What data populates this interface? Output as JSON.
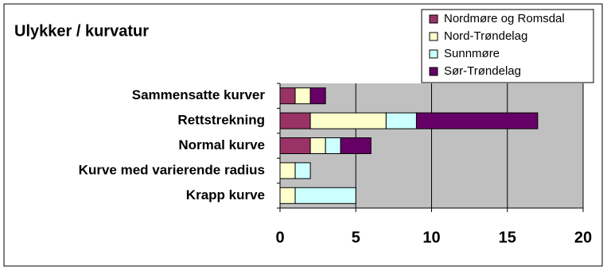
{
  "chart_data": {
    "type": "stacked_bar_horizontal",
    "title": "Ulykker / kurvatur",
    "categories": [
      "Sammensatte kurver",
      "Rettstrekning",
      "Normal kurve",
      "Kurve med varierende radius",
      "Krapp kurve"
    ],
    "series": [
      {
        "name": "Nordmøre og Romsdal",
        "color": "#993366",
        "values": [
          1,
          2,
          2,
          0,
          0
        ]
      },
      {
        "name": "Nord-Trøndelag",
        "color": "#ffffcc",
        "values": [
          1,
          5,
          1,
          1,
          1
        ]
      },
      {
        "name": "Sunnmøre",
        "color": "#ccffff",
        "values": [
          0,
          2,
          1,
          1,
          4
        ]
      },
      {
        "name": "Sør-Trøndelag",
        "color": "#660066",
        "values": [
          1,
          8,
          2,
          0,
          0
        ]
      }
    ],
    "xlim": [
      0,
      20
    ],
    "xticks": [
      0,
      5,
      10,
      15,
      20
    ],
    "grid": true,
    "legend": "top-right"
  }
}
